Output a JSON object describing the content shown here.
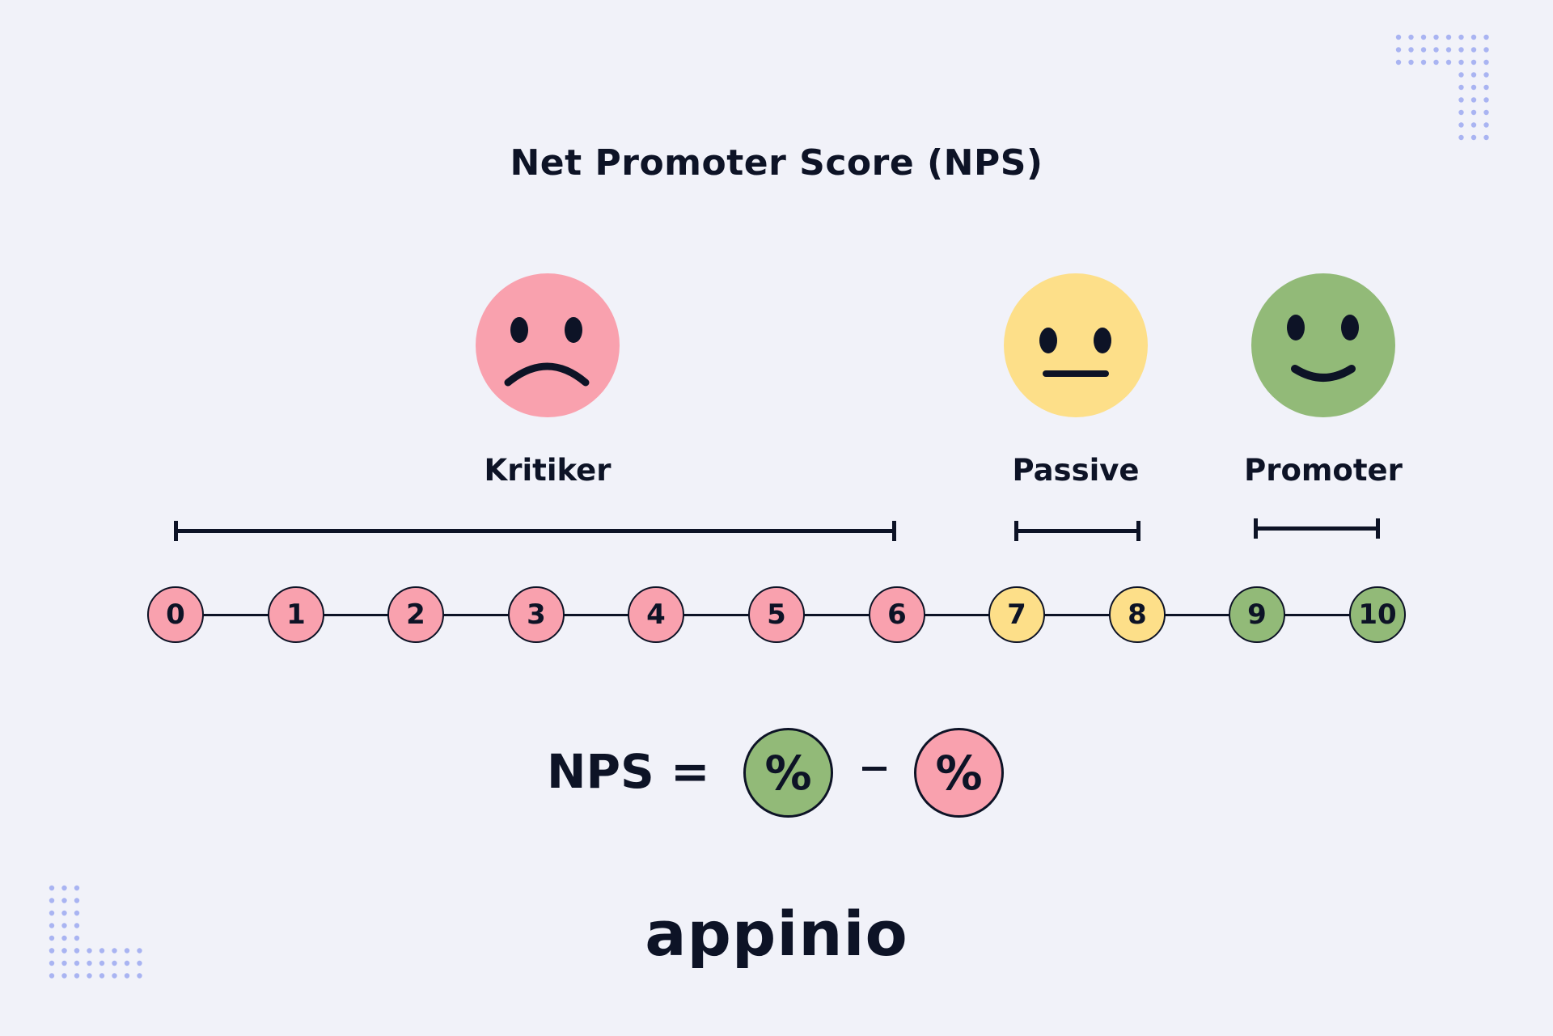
{
  "title": "Net Promoter Score (NPS)",
  "groups": [
    {
      "label": "Kritiker",
      "face": "sad-face-icon",
      "color": "#f9a1ae",
      "from": 0,
      "to": 6
    },
    {
      "label": "Passive",
      "face": "neutral-face-icon",
      "color": "#fddf89",
      "from": 7,
      "to": 8
    },
    {
      "label": "Promoter",
      "face": "happy-face-icon",
      "color": "#92ba78",
      "from": 9,
      "to": 10
    }
  ],
  "scale": [
    "0",
    "1",
    "2",
    "3",
    "4",
    "5",
    "6",
    "7",
    "8",
    "9",
    "10"
  ],
  "formula": {
    "label": "NPS =",
    "promoters_symbol": "%",
    "operator": "–",
    "detractors_symbol": "%"
  },
  "logo": "appinio",
  "colors": {
    "background": "#f1f2f9",
    "ink": "#0d1326",
    "dots": "#a9b4f2"
  }
}
